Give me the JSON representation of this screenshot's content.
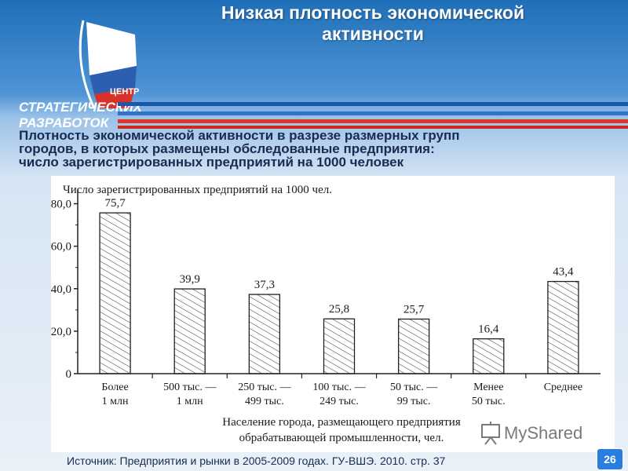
{
  "header": {
    "title_line1": "Низкая плотность экономической",
    "title_line2": "активности"
  },
  "logo": {
    "word_top": "ЦЕНТР",
    "word_mid": "СТРАТЕГИЧЕСКИХ",
    "word_bot": "РАЗРАБОТОК"
  },
  "subtitle": {
    "line1": "Плотность экономической активности в разрезе размерных групп",
    "line2": "городов, в которых размещены обследованные предприятия:",
    "line3": "число зарегистрированных предприятий на 1000 человек"
  },
  "chart_data": {
    "type": "bar",
    "title": "Число зарегистрированных предприятий на 1000 чел.",
    "xlabel_line1": "Население города, размещающего предприятия",
    "xlabel_line2": "обрабатывающей промышленности, чел.",
    "categories": [
      [
        "Более",
        "1 млн"
      ],
      [
        "500 тыс. —",
        "1 млн"
      ],
      [
        "250 тыс. —",
        "499 тыс."
      ],
      [
        "100 тыс. —",
        "249 тыс."
      ],
      [
        "50 тыс. —",
        "99 тыс."
      ],
      [
        "Менее",
        "50 тыс."
      ],
      [
        "Среднее",
        ""
      ]
    ],
    "values": [
      75.7,
      39.9,
      37.3,
      25.8,
      25.7,
      16.4,
      43.4
    ],
    "value_labels": [
      "75,7",
      "39,9",
      "37,3",
      "25,8",
      "25,7",
      "16,4",
      "43,4"
    ],
    "yticks": [
      0,
      20,
      40,
      60,
      80
    ],
    "ytick_labels": [
      "0",
      "20,0",
      "40,0",
      "60,0",
      "80,0"
    ],
    "ylim": [
      0,
      85
    ],
    "bar_fill": "hatched"
  },
  "source": {
    "text": "Источник: Предприятия и рынки в 2005-2009 годах. ГУ-ВШЭ. 2010. стр. 37"
  },
  "page": {
    "number": "26"
  },
  "watermark": {
    "text": "MyShared"
  },
  "colors": {
    "header_blue": "#1f6fb8",
    "stripe_blue": "#1b57a8",
    "stripe_red": "#e2352a",
    "badge_blue": "#2a7de0",
    "text_dark": "#1a2a52"
  }
}
